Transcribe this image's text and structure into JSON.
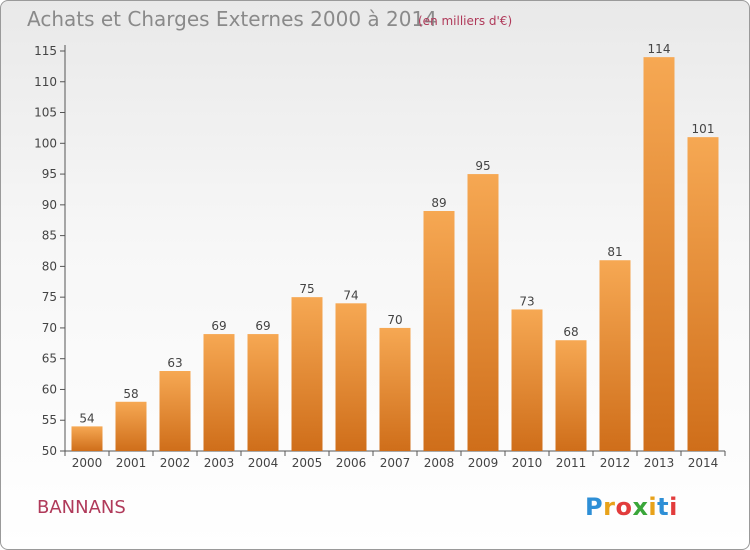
{
  "header": {
    "title": "Achats et Charges Externes 2000 à 2014",
    "subtitle": "(en milliers d'€)"
  },
  "commune": "BANNANS",
  "brand": {
    "letters": [
      "P",
      "r",
      "o",
      "x",
      "i",
      "t",
      "i"
    ],
    "colors": [
      "#2e8fd6",
      "#e8a21a",
      "#e23c3c",
      "#3aa63a",
      "#e8a21a",
      "#2e8fd6",
      "#e23c3c"
    ]
  },
  "colors": {
    "bar_light": "#f6a853",
    "bar_dark": "#cf6e1a"
  },
  "chart_data": {
    "type": "bar",
    "categories": [
      "2000",
      "2001",
      "2002",
      "2003",
      "2004",
      "2005",
      "2006",
      "2007",
      "2008",
      "2009",
      "2010",
      "2011",
      "2012",
      "2013",
      "2014"
    ],
    "values": [
      54,
      58,
      63,
      69,
      69,
      75,
      74,
      70,
      89,
      95,
      73,
      68,
      81,
      114,
      101
    ],
    "ylim": [
      50,
      115
    ],
    "yticks": [
      50,
      55,
      60,
      65,
      70,
      75,
      80,
      85,
      90,
      95,
      100,
      105,
      110,
      115
    ],
    "grid": false,
    "legend": "none"
  }
}
